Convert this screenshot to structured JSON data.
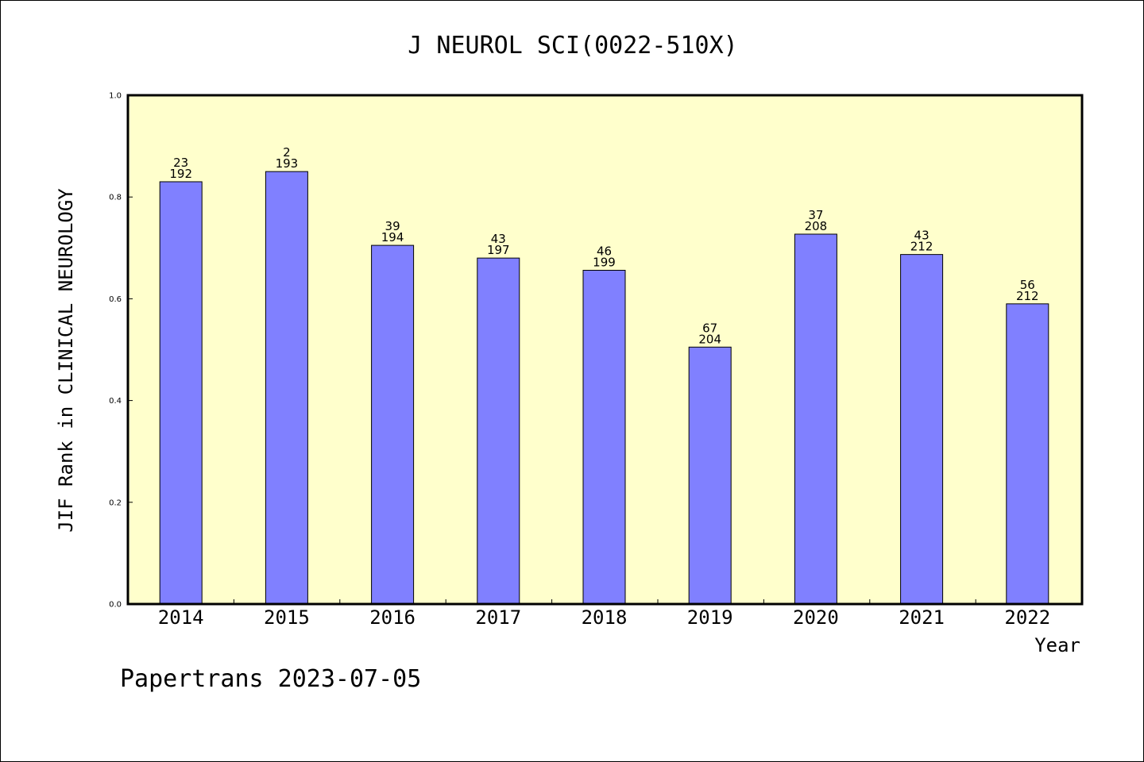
{
  "chart_data": {
    "type": "bar",
    "title": "J NEUROL SCI(0022-510X)",
    "xlabel": "Year",
    "ylabel": "JIF Rank in CLINICAL NEUROLOGY",
    "ylim": [
      0,
      1.0
    ],
    "yticks": [
      "0.0",
      "0.2",
      "0.4",
      "0.6",
      "0.8",
      "1.0"
    ],
    "categories": [
      "2014",
      "2015",
      "2016",
      "2017",
      "2018",
      "2019",
      "2020",
      "2021",
      "2022"
    ],
    "values": [
      0.83,
      0.85,
      0.705,
      0.68,
      0.656,
      0.505,
      0.727,
      0.687,
      0.59
    ],
    "ranks": [
      "23",
      "2",
      "39",
      "43",
      "46",
      "67",
      "37",
      "43",
      "56"
    ],
    "totals": [
      "192",
      "193",
      "194",
      "197",
      "199",
      "204",
      "208",
      "212",
      "212"
    ],
    "grid": false,
    "legend": "none"
  },
  "footer": {
    "text": "Papertrans 2023-07-05"
  },
  "colors": {
    "plot_background": "#ffffcc",
    "bar_fill": "#8080ff",
    "bar_stroke": "#000000"
  }
}
